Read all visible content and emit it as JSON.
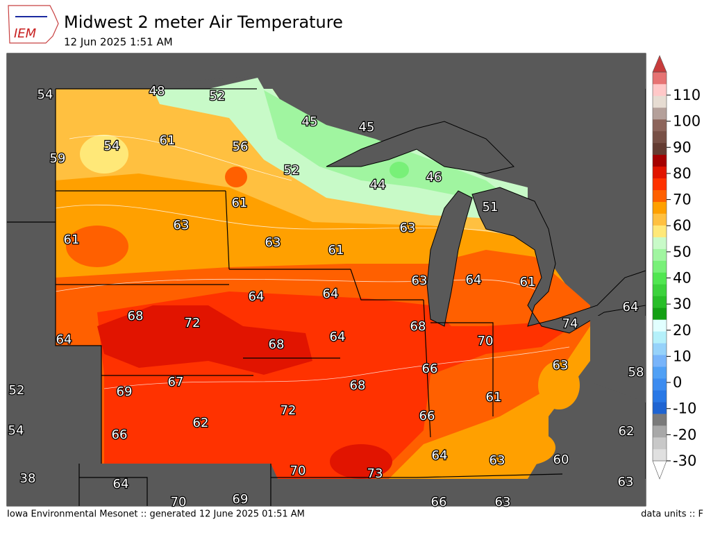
{
  "header": {
    "logo_text": "IEM",
    "title": "Midwest 2 meter Air Temperature",
    "subtitle": "12 Jun 2025 1:51 AM"
  },
  "stations": [
    54,
    48,
    52,
    45,
    45,
    54,
    61,
    56,
    59,
    52,
    44,
    46,
    61,
    51,
    63,
    63,
    61,
    63,
    61,
    63,
    64,
    61,
    64,
    64,
    64,
    68,
    72,
    68,
    74,
    64,
    68,
    64,
    70,
    63,
    66,
    58,
    67,
    69,
    68,
    52,
    61,
    72,
    62,
    66,
    54,
    66,
    62,
    64,
    63,
    60,
    38,
    70,
    73,
    64,
    63,
    70,
    69,
    66,
    63
  ],
  "colorbar": {
    "ticks": [
      110,
      100,
      90,
      80,
      70,
      60,
      50,
      40,
      30,
      20,
      10,
      0,
      -10,
      -20,
      -30
    ]
  },
  "footer": {
    "left": "Iowa Environmental Mesonet :: generated 12 June 2025 01:51 AM",
    "right": "data units :: F"
  }
}
